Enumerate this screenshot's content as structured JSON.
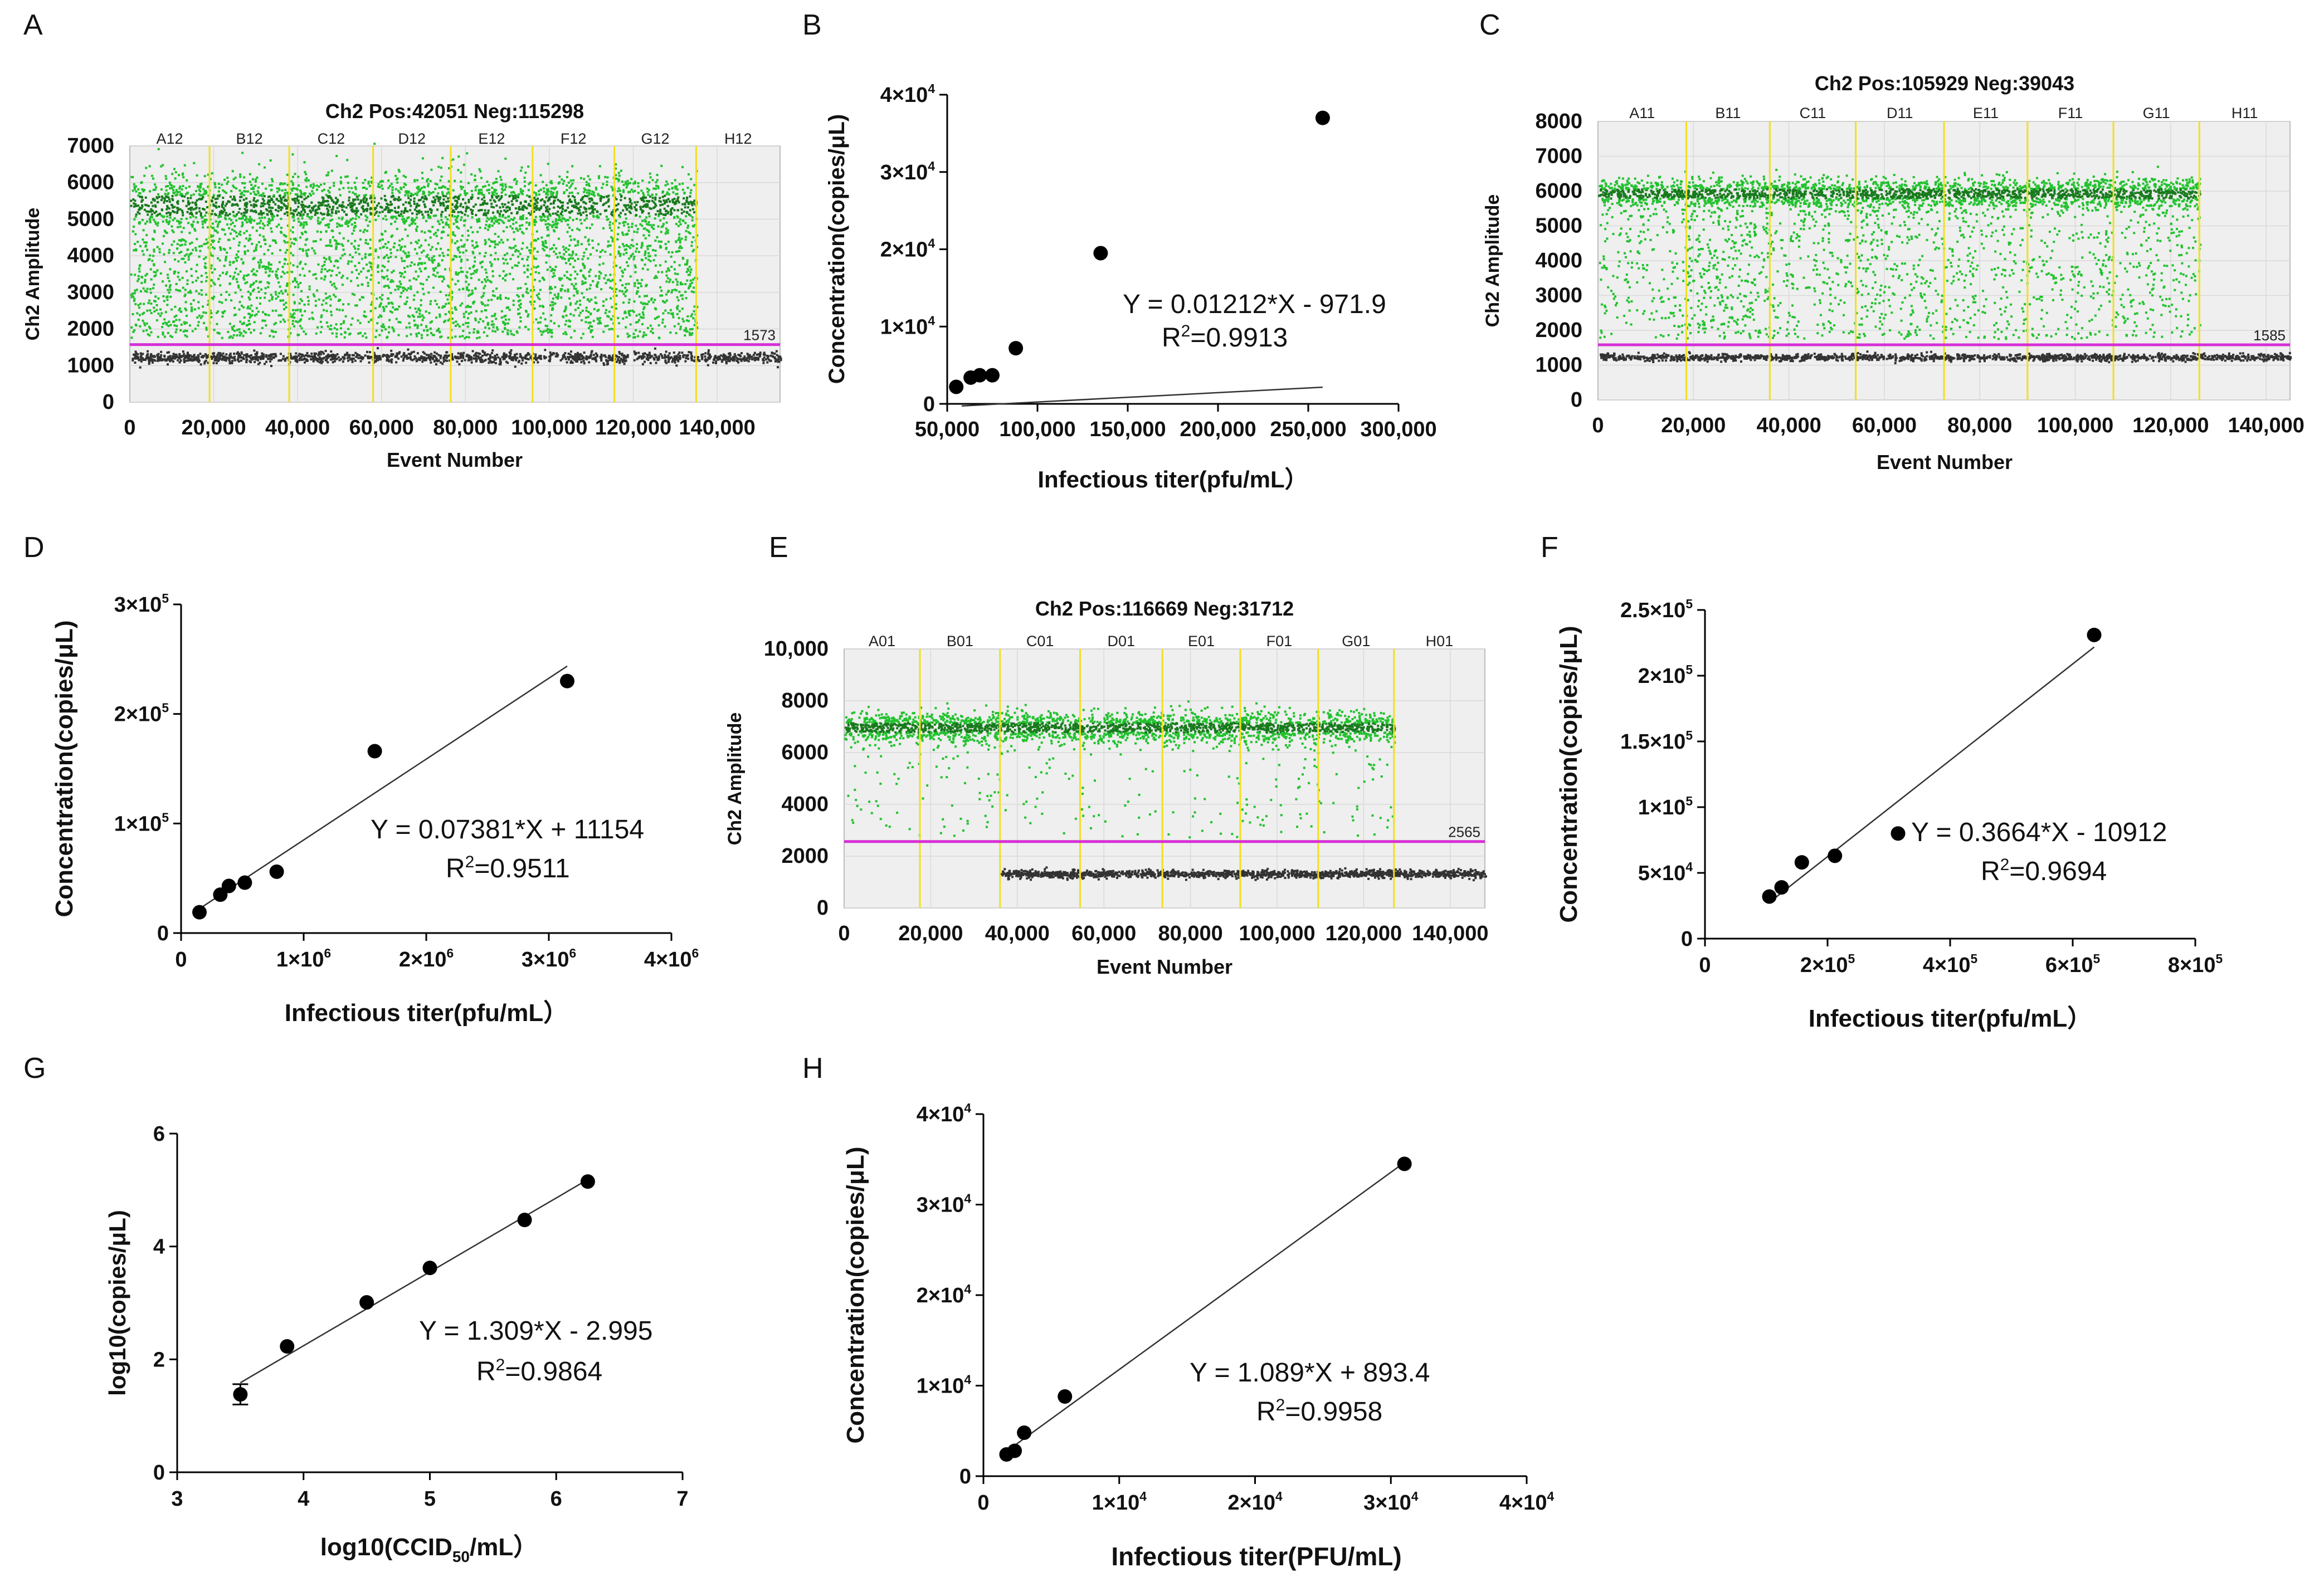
{
  "panel_labels": [
    "A",
    "B",
    "C",
    "D",
    "E",
    "F",
    "G",
    "H"
  ],
  "chart_data": [
    {
      "id": "A",
      "type": "scatter",
      "subtype": "ddpcr-1d-amplitude",
      "title": "Ch2 Pos:42051 Neg:115298",
      "xlabel": "Event Number",
      "ylabel": "Ch2 Amplitude",
      "xlim": [
        0,
        155000
      ],
      "ylim": [
        0,
        7000
      ],
      "xticks": [
        0,
        20000,
        40000,
        60000,
        80000,
        100000,
        120000,
        140000
      ],
      "xtick_labels": [
        "0",
        "20,000",
        "40,000",
        "60,000",
        "80,000",
        "100,000",
        "120,000",
        "140,000"
      ],
      "yticks": [
        0,
        1000,
        2000,
        3000,
        4000,
        5000,
        6000,
        7000
      ],
      "ytick_labels": [
        "0",
        "1000",
        "2000",
        "3000",
        "4000",
        "5000",
        "6000",
        "7000"
      ],
      "wells": [
        "A12",
        "B12",
        "C12",
        "D12",
        "E12",
        "F12",
        "G12",
        "H12"
      ],
      "well_boundaries": [
        19000,
        38000,
        58000,
        76500,
        96000,
        115500,
        135000
      ],
      "threshold": 1573,
      "threshold_label": "1573",
      "positive_band": [
        4500,
        6300
      ],
      "negative_band": [
        1100,
        1400
      ],
      "data_end": 135000,
      "positive_color": "#22c22e",
      "negative_color": "#333333",
      "threshold_color": "#d62fd6",
      "boundary_color": "#f2e01e"
    },
    {
      "id": "B",
      "type": "scatter",
      "subtype": "regression",
      "xlabel": "Infectious titer(pfu/mL）",
      "ylabel": "Concentration(copies/μL)",
      "xlim": [
        50000,
        300000
      ],
      "ylim": [
        0,
        40000
      ],
      "xticks": [
        50000,
        100000,
        150000,
        200000,
        250000,
        300000
      ],
      "xtick_labels": [
        "50,000",
        "100,000",
        "150,000",
        "200,000",
        "250,000",
        "300,000"
      ],
      "yticks": [
        0,
        10000,
        20000,
        30000,
        40000
      ],
      "ytick_labels": [
        {
          "m": "0",
          "e": ""
        },
        {
          "m": "1×10",
          "e": "4"
        },
        {
          "m": "2×10",
          "e": "4"
        },
        {
          "m": "3×10",
          "e": "4"
        },
        {
          "m": "4×10",
          "e": "4"
        }
      ],
      "x": [
        55000,
        63000,
        68000,
        75000,
        88000,
        135000,
        258000
      ],
      "y": [
        2200,
        3400,
        3700,
        3700,
        7200,
        19500,
        37000
      ],
      "fit": {
        "slope": 0.01212,
        "intercept": -971.9,
        "x_range": [
          58000,
          258000
        ]
      },
      "equation": "Y = 0.01212*X - 971.9",
      "r2_label": "R",
      "r2_sup": "2",
      "r2_value": "=0.9913"
    },
    {
      "id": "C",
      "type": "scatter",
      "subtype": "ddpcr-1d-amplitude",
      "title": "Ch2 Pos:105929 Neg:39043",
      "xlabel": "Event Number",
      "ylabel": "Ch2 Amplitude",
      "xlim": [
        0,
        145000
      ],
      "ylim": [
        0,
        8000
      ],
      "xticks": [
        0,
        20000,
        40000,
        60000,
        80000,
        100000,
        120000,
        140000
      ],
      "xtick_labels": [
        "0",
        "20,000",
        "40,000",
        "60,000",
        "80,000",
        "100,000",
        "120,000",
        "140,000"
      ],
      "yticks": [
        0,
        1000,
        2000,
        3000,
        4000,
        5000,
        6000,
        7000,
        8000
      ],
      "ytick_labels": [
        "0",
        "1000",
        "2000",
        "3000",
        "4000",
        "5000",
        "6000",
        "7000",
        "8000"
      ],
      "wells": [
        "A11",
        "B11",
        "C11",
        "D11",
        "E11",
        "F11",
        "G11",
        "H11"
      ],
      "well_boundaries": [
        18500,
        36000,
        54000,
        72500,
        90000,
        108000,
        126000
      ],
      "threshold": 1585,
      "threshold_label": "1585",
      "positive_band": [
        5500,
        6400
      ],
      "negative_band": [
        1150,
        1350
      ],
      "data_end": 126000,
      "positive_color": "#22c22e",
      "negative_color": "#333333",
      "threshold_color": "#d62fd6",
      "boundary_color": "#f2e01e"
    },
    {
      "id": "D",
      "type": "scatter",
      "subtype": "regression",
      "xlabel": "Infectious titer(pfu/mL）",
      "ylabel": "Concentration(copies/μL)",
      "xlim": [
        0,
        4000000
      ],
      "ylim": [
        0,
        300000
      ],
      "xticks": [
        0,
        1000000,
        2000000,
        3000000,
        4000000
      ],
      "xtick_labels": [
        {
          "m": "0",
          "e": ""
        },
        {
          "m": "1×10",
          "e": "6"
        },
        {
          "m": "2×10",
          "e": "6"
        },
        {
          "m": "3×10",
          "e": "6"
        },
        {
          "m": "4×10",
          "e": "6"
        }
      ],
      "yticks": [
        0,
        100000,
        200000,
        300000
      ],
      "ytick_labels": [
        {
          "m": "0",
          "e": ""
        },
        {
          "m": "1×10",
          "e": "5"
        },
        {
          "m": "2×10",
          "e": "5"
        },
        {
          "m": "3×10",
          "e": "5"
        }
      ],
      "x": [
        150000,
        320000,
        390000,
        520000,
        780000,
        1580000,
        3150000
      ],
      "y": [
        19000,
        35000,
        43000,
        46000,
        56000,
        166000,
        230000
      ],
      "fit": {
        "slope": 0.07381,
        "intercept": 11154,
        "x_range": [
          150000,
          3150000
        ]
      },
      "equation": "Y = 0.07381*X + 11154",
      "r2_label": "R",
      "r2_sup": "2",
      "r2_value": "=0.9511"
    },
    {
      "id": "E",
      "type": "scatter",
      "subtype": "ddpcr-1d-amplitude",
      "title": "Ch2 Pos:116669 Neg:31712",
      "xlabel": "Event Number",
      "ylabel": "Ch2 Amplitude",
      "xlim": [
        0,
        148000
      ],
      "ylim": [
        0,
        10000
      ],
      "xticks": [
        0,
        20000,
        40000,
        60000,
        80000,
        100000,
        120000,
        140000
      ],
      "xtick_labels": [
        "0",
        "20,000",
        "40,000",
        "60,000",
        "80,000",
        "100,000",
        "120,000",
        "140,000"
      ],
      "yticks": [
        0,
        2000,
        4000,
        6000,
        8000,
        10000
      ],
      "ytick_labels": [
        "0",
        "2000",
        "4000",
        "6000",
        "8000",
        "10,000"
      ],
      "wells": [
        "A01",
        "B01",
        "C01",
        "D01",
        "E01",
        "F01",
        "G01",
        "H01"
      ],
      "well_boundaries": [
        17500,
        36000,
        54500,
        73500,
        91500,
        109500,
        127000
      ],
      "threshold": 2565,
      "threshold_label": "2565",
      "positive_band": [
        6400,
        7600
      ],
      "negative_band": [
        1200,
        1500
      ],
      "data_end": 127000,
      "positive_color": "#22c22e",
      "negative_color": "#333333",
      "threshold_color": "#d62fd6",
      "boundary_color": "#f2e01e"
    },
    {
      "id": "F",
      "type": "scatter",
      "subtype": "regression",
      "xlabel": "Infectious titer(pfu/mL）",
      "ylabel": "Concentration(copies/μL)",
      "xlim": [
        0,
        800000
      ],
      "ylim": [
        0,
        250000
      ],
      "xticks": [
        0,
        200000,
        400000,
        600000,
        800000
      ],
      "xtick_labels": [
        {
          "m": "0",
          "e": ""
        },
        {
          "m": "2×10",
          "e": "5"
        },
        {
          "m": "4×10",
          "e": "5"
        },
        {
          "m": "6×10",
          "e": "5"
        },
        {
          "m": "8×10",
          "e": "5"
        }
      ],
      "yticks": [
        0,
        50000,
        100000,
        150000,
        200000,
        250000
      ],
      "ytick_labels": [
        {
          "m": "0",
          "e": ""
        },
        {
          "m": "5×10",
          "e": "4"
        },
        {
          "m": "1×10",
          "e": "5"
        },
        {
          "m": "1.5×10",
          "e": "5"
        },
        {
          "m": "2×10",
          "e": "5"
        },
        {
          "m": "2.5×10",
          "e": "5"
        }
      ],
      "x": [
        105000,
        125000,
        158000,
        212000,
        315000,
        635000
      ],
      "y": [
        32000,
        39000,
        58000,
        63000,
        80000,
        231000
      ],
      "fit": {
        "slope": 0.3664,
        "intercept": -10912,
        "x_range": [
          105000,
          635000
        ]
      },
      "equation": "Y = 0.3664*X - 10912",
      "r2_label": "R",
      "r2_sup": "2",
      "r2_value": "=0.9694"
    },
    {
      "id": "G",
      "type": "scatter",
      "subtype": "regression",
      "xlabel": "log10(CCID",
      "xlabel_sub": "50",
      "xlabel_tail": "/mL）",
      "ylabel": "log10(copies/μL)",
      "xlim": [
        3,
        7
      ],
      "ylim": [
        0,
        6
      ],
      "xticks": [
        3,
        4,
        5,
        6,
        7
      ],
      "xtick_labels": [
        {
          "m": "3",
          "e": ""
        },
        {
          "m": "4",
          "e": ""
        },
        {
          "m": "5",
          "e": ""
        },
        {
          "m": "6",
          "e": ""
        },
        {
          "m": "7",
          "e": ""
        }
      ],
      "yticks": [
        0,
        2,
        4,
        6
      ],
      "ytick_labels": [
        {
          "m": "0",
          "e": ""
        },
        {
          "m": "2",
          "e": ""
        },
        {
          "m": "4",
          "e": ""
        },
        {
          "m": "6",
          "e": ""
        }
      ],
      "x": [
        3.5,
        3.87,
        4.5,
        5.0,
        5.75,
        6.25
      ],
      "y": [
        1.38,
        2.23,
        3.01,
        3.62,
        4.47,
        5.15
      ],
      "y_err": [
        0.18,
        0,
        0,
        0,
        0,
        0
      ],
      "fit": {
        "slope": 1.309,
        "intercept": -2.995,
        "x_range": [
          3.5,
          6.25
        ]
      },
      "equation": "Y = 1.309*X - 2.995",
      "r2_label": "R",
      "r2_sup": "2",
      "r2_value": "=0.9864"
    },
    {
      "id": "H",
      "type": "scatter",
      "subtype": "regression",
      "xlabel": "Infectious titer(PFU/mL)",
      "ylabel": "Concentration(copies/μL)",
      "xlim": [
        0,
        40000
      ],
      "ylim": [
        0,
        40000
      ],
      "xticks": [
        0,
        10000,
        20000,
        30000,
        40000
      ],
      "xtick_labels": [
        {
          "m": "0",
          "e": ""
        },
        {
          "m": "1×10",
          "e": "4"
        },
        {
          "m": "2×10",
          "e": "4"
        },
        {
          "m": "3×10",
          "e": "4"
        },
        {
          "m": "4×10",
          "e": "4"
        }
      ],
      "yticks": [
        0,
        10000,
        20000,
        30000,
        40000
      ],
      "ytick_labels": [
        {
          "m": "0",
          "e": ""
        },
        {
          "m": "1×10",
          "e": "4"
        },
        {
          "m": "2×10",
          "e": "4"
        },
        {
          "m": "3×10",
          "e": "4"
        },
        {
          "m": "4×10",
          "e": "4"
        }
      ],
      "x": [
        1700,
        2300,
        3000,
        6000,
        31000
      ],
      "y": [
        2400,
        2800,
        4800,
        8800,
        34500
      ],
      "fit": {
        "slope": 1.089,
        "intercept": 893.4,
        "x_range": [
          1300,
          31000
        ]
      },
      "equation": "Y = 1.089*X + 893.4",
      "r2_label": "R",
      "r2_sup": "2",
      "r2_value": "=0.9958"
    }
  ]
}
